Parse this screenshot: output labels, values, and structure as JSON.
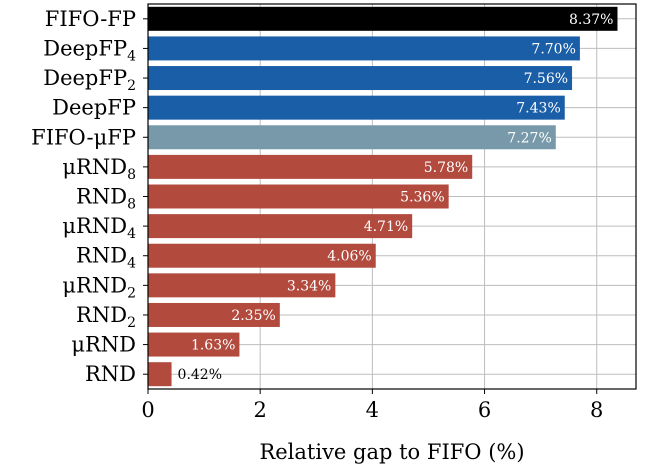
{
  "chart_data": {
    "type": "bar",
    "orientation": "horizontal",
    "title": "",
    "xlabel": "Relative gap to FIFO (%)",
    "ylabel": "",
    "xlim": [
      0,
      8.7
    ],
    "xticks": [
      "0",
      "2",
      "4",
      "6",
      "8"
    ],
    "grid": true,
    "categories": [
      {
        "base": "FIFO-FP",
        "sub": "",
        "prefix": ""
      },
      {
        "base": "DeepFP",
        "sub": "4",
        "prefix": ""
      },
      {
        "base": "DeepFP",
        "sub": "2",
        "prefix": ""
      },
      {
        "base": "DeepFP",
        "sub": "",
        "prefix": ""
      },
      {
        "base": "FP",
        "sub": "",
        "prefix": "FIFO-μ"
      },
      {
        "base": "RND",
        "sub": "8",
        "prefix": "μ"
      },
      {
        "base": "RND",
        "sub": "8",
        "prefix": ""
      },
      {
        "base": "RND",
        "sub": "4",
        "prefix": "μ"
      },
      {
        "base": "RND",
        "sub": "4",
        "prefix": ""
      },
      {
        "base": "RND",
        "sub": "2",
        "prefix": "μ"
      },
      {
        "base": "RND",
        "sub": "2",
        "prefix": ""
      },
      {
        "base": "RND",
        "sub": "",
        "prefix": "μ"
      },
      {
        "base": "RND",
        "sub": "",
        "prefix": ""
      }
    ],
    "values": [
      8.37,
      7.7,
      7.56,
      7.43,
      7.27,
      5.78,
      5.36,
      4.71,
      4.06,
      3.34,
      2.35,
      1.63,
      0.42
    ],
    "data_labels": [
      "8.37%",
      "7.70%",
      "7.56%",
      "7.43%",
      "7.27%",
      "5.78%",
      "5.36%",
      "4.71%",
      "4.06%",
      "3.34%",
      "2.35%",
      "1.63%",
      "0.42%"
    ],
    "colors": [
      "#000000",
      "#1a5ea8",
      "#1a5ea8",
      "#1a5ea8",
      "#7799aa",
      "#b24a3e",
      "#b24a3e",
      "#b24a3e",
      "#b24a3e",
      "#b24a3e",
      "#b24a3e",
      "#b24a3e",
      "#b24a3e"
    ]
  }
}
